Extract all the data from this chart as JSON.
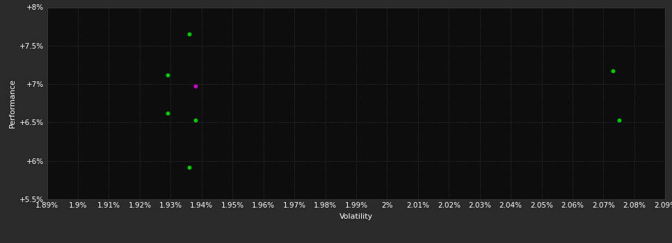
{
  "background_color": "#2a2a2a",
  "plot_bg_color": "#0d0d0d",
  "grid_color": "#404040",
  "text_color": "#ffffff",
  "xlabel": "Volatility",
  "ylabel": "Performance",
  "xlim": [
    0.0189,
    0.0209
  ],
  "ylim": [
    0.055,
    0.08
  ],
  "xtick_values": [
    0.0189,
    0.019,
    0.0191,
    0.0192,
    0.0193,
    0.0194,
    0.0195,
    0.0196,
    0.0197,
    0.0198,
    0.0199,
    0.02,
    0.0201,
    0.0202,
    0.0203,
    0.0204,
    0.0205,
    0.0206,
    0.0207,
    0.0208,
    0.0209
  ],
  "ytick_values": [
    0.055,
    0.06,
    0.065,
    0.07,
    0.075,
    0.08
  ],
  "ytick_labels": [
    "+5.5%",
    "+6%",
    "+6.5%",
    "+7%",
    "+7.5%",
    "+8%"
  ],
  "green_points": [
    [
      0.01936,
      0.0765
    ],
    [
      0.01929,
      0.07115
    ],
    [
      0.01929,
      0.06625
    ],
    [
      0.01938,
      0.0653
    ],
    [
      0.01936,
      0.0592
    ],
    [
      0.02073,
      0.07175
    ],
    [
      0.02075,
      0.0653
    ]
  ],
  "magenta_points": [
    [
      0.01938,
      0.06975
    ]
  ],
  "point_size": 18,
  "font_size_ticks": 7.5,
  "font_size_labels": 8
}
